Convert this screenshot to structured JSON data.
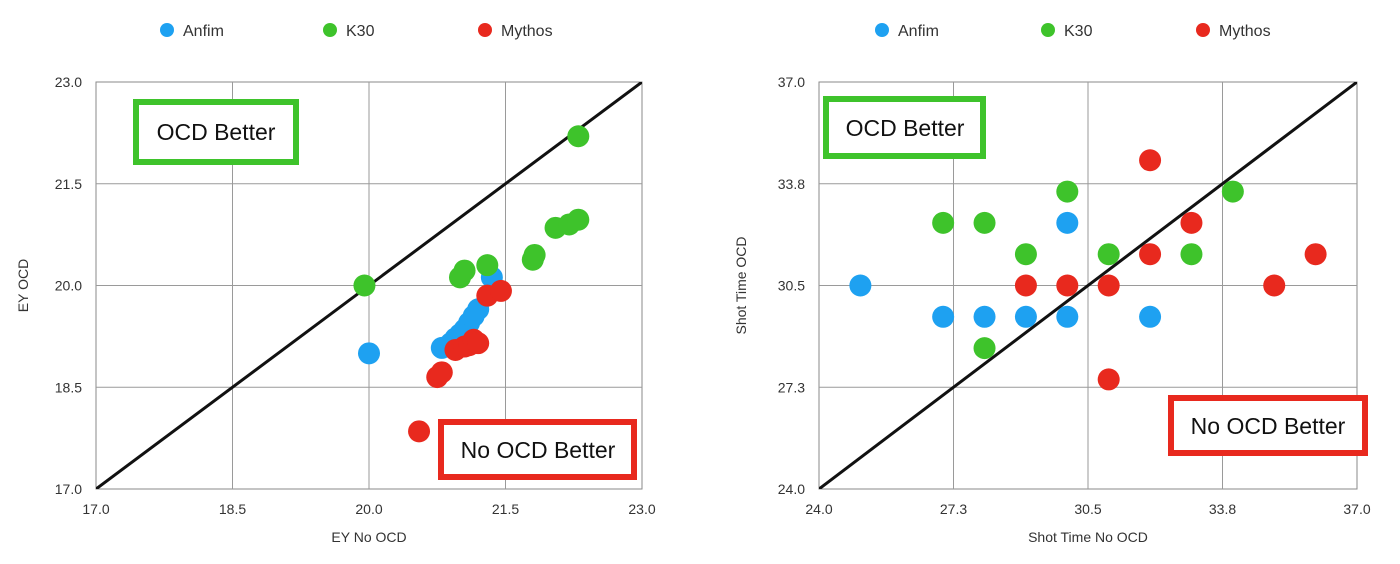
{
  "chart_data": [
    {
      "type": "scatter",
      "xlabel": "EY No OCD",
      "ylabel": "EY OCD",
      "xlim": [
        17.0,
        23.0
      ],
      "ylim": [
        17.0,
        23.0
      ],
      "xticks": [
        "17.0",
        "18.5",
        "20.0",
        "21.5",
        "23.0"
      ],
      "yticks": [
        "17.0",
        "18.5",
        "20.0",
        "21.5",
        "23.0"
      ],
      "grid": true,
      "reference_line": "y = x",
      "legend": "top",
      "annotations": [
        {
          "text": "OCD Better",
          "color": "#3ec32b"
        },
        {
          "text": "No OCD Better",
          "color": "#e8291e"
        }
      ],
      "series": [
        {
          "name": "Anfim",
          "color": "#1ea1f1",
          "points": [
            [
              20.0,
              19.0
            ],
            [
              21.35,
              20.12
            ],
            [
              21.2,
              19.65
            ],
            [
              21.15,
              19.55
            ],
            [
              21.1,
              19.45
            ],
            [
              21.05,
              19.35
            ],
            [
              21.0,
              19.28
            ],
            [
              20.95,
              19.22
            ],
            [
              20.9,
              19.15
            ],
            [
              20.8,
              19.08
            ]
          ]
        },
        {
          "name": "K30",
          "color": "#3ec32b",
          "points": [
            [
              19.95,
              20.0
            ],
            [
              21.0,
              20.12
            ],
            [
              21.05,
              20.22
            ],
            [
              21.3,
              20.3
            ],
            [
              21.8,
              20.38
            ],
            [
              21.82,
              20.45
            ],
            [
              22.05,
              20.85
            ],
            [
              22.2,
              20.9
            ],
            [
              22.3,
              20.97
            ],
            [
              22.3,
              22.2
            ]
          ]
        },
        {
          "name": "Mythos",
          "color": "#e8291e",
          "points": [
            [
              20.55,
              17.85
            ],
            [
              20.75,
              18.65
            ],
            [
              20.8,
              18.72
            ],
            [
              20.95,
              19.05
            ],
            [
              21.05,
              19.1
            ],
            [
              21.1,
              19.12
            ],
            [
              21.15,
              19.2
            ],
            [
              21.2,
              19.15
            ],
            [
              21.3,
              19.85
            ],
            [
              21.45,
              19.92
            ]
          ]
        }
      ]
    },
    {
      "type": "scatter",
      "xlabel": "Shot Time No OCD",
      "ylabel": "Shot Time OCD",
      "xlim": [
        24.0,
        37.0
      ],
      "ylim": [
        24.0,
        37.0
      ],
      "xticks": [
        "24.0",
        "27.3",
        "30.5",
        "33.8",
        "37.0"
      ],
      "yticks": [
        "24.0",
        "27.3",
        "30.5",
        "33.8",
        "37.0"
      ],
      "grid": true,
      "reference_line": "y = x",
      "legend": "top",
      "annotations": [
        {
          "text": "OCD Better",
          "color": "#3ec32b"
        },
        {
          "text": "No OCD Better",
          "color": "#e8291e"
        }
      ],
      "series": [
        {
          "name": "Anfim",
          "color": "#1ea1f1",
          "points": [
            [
              25.0,
              30.5
            ],
            [
              27.0,
              29.5
            ],
            [
              28.0,
              29.5
            ],
            [
              29.0,
              29.5
            ],
            [
              30.0,
              29.5
            ],
            [
              30.0,
              32.5
            ],
            [
              32.0,
              29.5
            ]
          ]
        },
        {
          "name": "K30",
          "color": "#3ec32b",
          "points": [
            [
              27.0,
              32.5
            ],
            [
              28.0,
              32.5
            ],
            [
              28.0,
              28.5
            ],
            [
              29.0,
              31.5
            ],
            [
              30.0,
              33.5
            ],
            [
              31.0,
              31.5
            ],
            [
              33.0,
              31.5
            ],
            [
              34.0,
              33.5
            ]
          ]
        },
        {
          "name": "Mythos",
          "color": "#e8291e",
          "points": [
            [
              29.0,
              30.5
            ],
            [
              30.0,
              30.5
            ],
            [
              31.0,
              30.5
            ],
            [
              31.0,
              27.5
            ],
            [
              32.0,
              31.5
            ],
            [
              32.0,
              34.5
            ],
            [
              33.0,
              32.5
            ],
            [
              35.0,
              30.5
            ],
            [
              36.0,
              31.5
            ]
          ]
        }
      ]
    }
  ]
}
